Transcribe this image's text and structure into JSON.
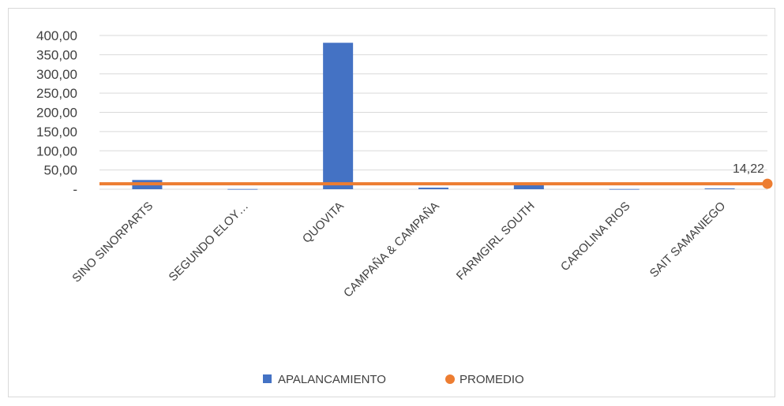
{
  "chart_data": {
    "type": "bar",
    "categories": [
      "SINO SINORPARTS",
      "SEGUNDO ELOY…",
      "QUOVITA",
      "CAMPAÑA & CAMPAÑA",
      "FARMGIRL SOUTH",
      "CAROLINA RIOS",
      "SAIT SAMANIEGO"
    ],
    "series": [
      {
        "name": "APALANCAMIENTO",
        "type": "bar",
        "color": "#4472C4",
        "values": [
          24,
          0.5,
          381,
          4,
          14,
          0.5,
          2
        ]
      },
      {
        "name": "PROMEDIO",
        "type": "line",
        "color": "#ED7D31",
        "values": [
          14.22,
          14.22,
          14.22,
          14.22,
          14.22,
          14.22,
          14.22
        ]
      }
    ],
    "yticks": [
      "-",
      "50,00",
      "100,00",
      "150,00",
      "200,00",
      "250,00",
      "300,00",
      "350,00",
      "400,00"
    ],
    "ylim": [
      0,
      400
    ],
    "grid": true,
    "legend_position": "bottom",
    "data_labels": [
      {
        "series": "PROMEDIO",
        "text": "14,22",
        "at": "last"
      }
    ],
    "title": "",
    "xlabel": "",
    "ylabel": ""
  }
}
